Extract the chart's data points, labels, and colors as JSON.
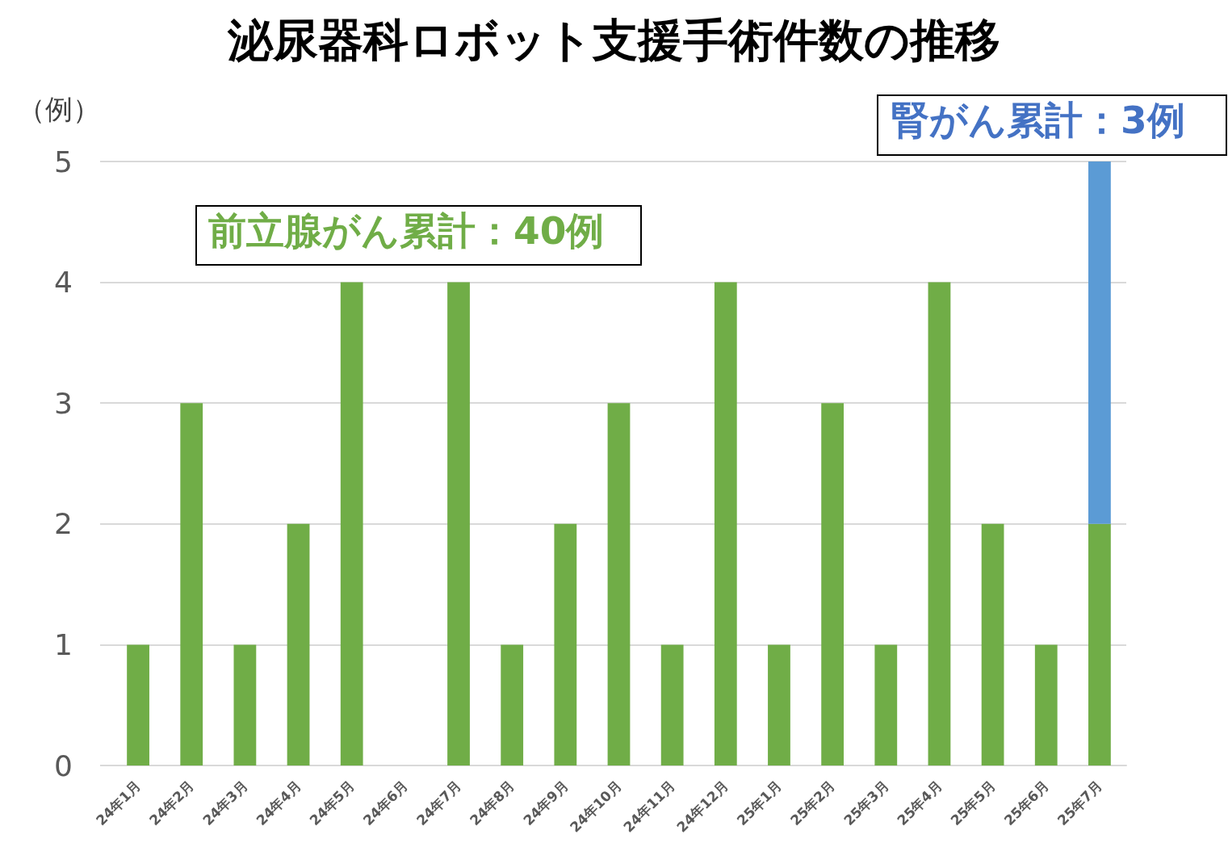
{
  "chart_data": {
    "type": "bar",
    "title": "泌尿器科ロボット支援手術件数の推移",
    "ylabel": "（例）",
    "categories": [
      "24年1月",
      "24年2月",
      "24年3月",
      "24年4月",
      "24年5月",
      "24年6月",
      "24年7月",
      "24年8月",
      "24年9月",
      "24年10月",
      "24年11月",
      "24年12月",
      "25年1月",
      "25年2月",
      "25年3月",
      "25年4月",
      "25年5月",
      "25年6月",
      "25年7月"
    ],
    "series": [
      {
        "color": "#70ad47",
        "values": [
          1,
          3,
          1,
          2,
          4,
          0,
          4,
          1,
          2,
          3,
          1,
          4,
          1,
          3,
          1,
          4,
          2,
          1,
          2
        ]
      },
      {
        "color": "#5b9bd5",
        "values": [
          0,
          0,
          0,
          0,
          0,
          0,
          0,
          0,
          0,
          0,
          0,
          0,
          0,
          0,
          0,
          0,
          0,
          0,
          3
        ]
      }
    ],
    "stacked": true,
    "ylim": [
      0,
      5
    ],
    "yticks": [
      0,
      1,
      2,
      3,
      4,
      5
    ],
    "grid": "y",
    "annotations": [
      "前立腺がん累計：40例",
      "腎がん累計：3例"
    ]
  }
}
